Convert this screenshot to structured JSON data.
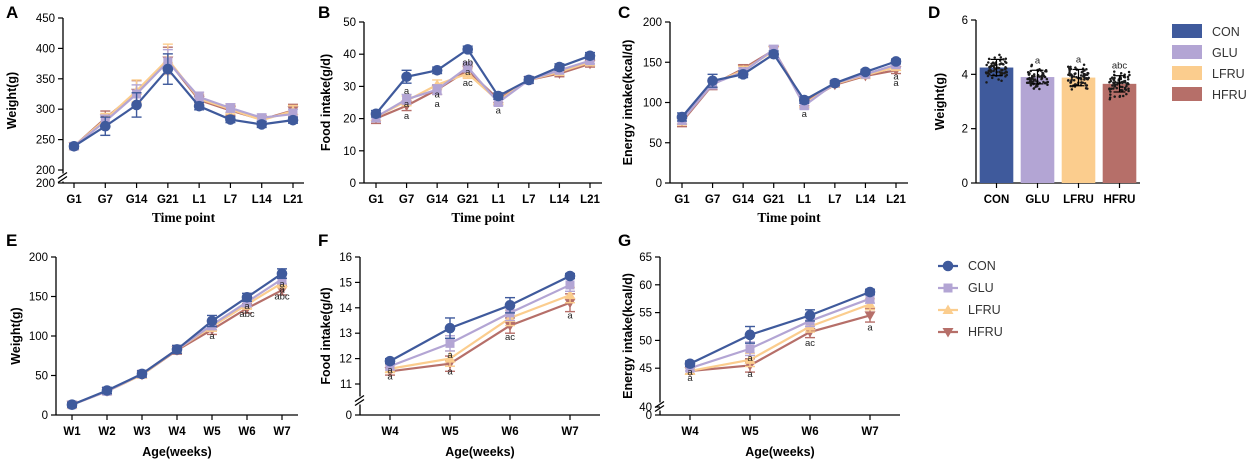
{
  "colors": {
    "CON": "#3f5a9c",
    "GLU": "#b3a5d4",
    "LFRU": "#fbcd8e",
    "HFRU": "#b66f69"
  },
  "legend_top": {
    "entries": [
      "CON",
      "GLU",
      "LFRU",
      "HFRU"
    ]
  },
  "legend_bottom": {
    "entries": [
      "CON",
      "GLU",
      "LFRU",
      "HFRU"
    ]
  },
  "chart_data": [
    {
      "id": "A",
      "label": "A",
      "type": "line",
      "ylabel": "Weight(g)",
      "xlabel": "Time point",
      "categories": [
        "G1",
        "G7",
        "G14",
        "G21",
        "L1",
        "L7",
        "L14",
        "L21"
      ],
      "ylim": [
        200,
        450
      ],
      "break_at": 225,
      "yticks": [
        {
          "v": 200,
          "t": "200"
        },
        {
          "v": 250,
          "t": "250"
        },
        {
          "v": 300,
          "t": "300"
        },
        {
          "v": 350,
          "t": "350"
        },
        {
          "v": 400,
          "t": "400"
        },
        {
          "v": 450,
          "t": "450"
        }
      ],
      "extra_ticks": [
        {
          "v": 200,
          "t": "200"
        }
      ],
      "series": [
        {
          "name": "HFRU",
          "values": [
            239,
            285,
            327,
            380,
            315,
            298,
            283,
            298
          ],
          "err": [
            4,
            12,
            20,
            22,
            8,
            8,
            6,
            10
          ]
        },
        {
          "name": "LFRU",
          "values": [
            239,
            283,
            330,
            382,
            317,
            300,
            282,
            297
          ],
          "err": [
            4,
            10,
            18,
            25,
            8,
            8,
            6,
            9
          ]
        },
        {
          "name": "GLU",
          "values": [
            239,
            280,
            325,
            378,
            320,
            302,
            286,
            292
          ],
          "err": [
            4,
            10,
            15,
            20,
            8,
            7,
            6,
            8
          ]
        },
        {
          "name": "CON",
          "values": [
            239,
            272,
            307,
            366,
            305,
            283,
            275,
            282
          ],
          "err": [
            4,
            15,
            20,
            25,
            6,
            5,
            5,
            5
          ]
        }
      ],
      "annotations": []
    },
    {
      "id": "B",
      "label": "B",
      "type": "line",
      "ylabel": "Food intake(g/d)",
      "xlabel": "Time point",
      "categories": [
        "G1",
        "G7",
        "G14",
        "G21",
        "L1",
        "L7",
        "L14",
        "L21"
      ],
      "ylim": [
        0,
        50
      ],
      "yticks": [
        {
          "v": 0,
          "t": "0"
        },
        {
          "v": 10,
          "t": "10"
        },
        {
          "v": 20,
          "t": "20"
        },
        {
          "v": 30,
          "t": "30"
        },
        {
          "v": 40,
          "t": "40"
        },
        {
          "v": 50,
          "t": "50"
        }
      ],
      "extra_ticks": [],
      "series": [
        {
          "name": "HFRU",
          "values": [
            20,
            24,
            29,
            35,
            26,
            32,
            34,
            37
          ],
          "err": [
            1.5,
            1.5,
            1.5,
            1.5,
            1,
            1,
            1,
            1
          ]
        },
        {
          "name": "LFRU",
          "values": [
            20.5,
            25.5,
            30.5,
            34,
            25.5,
            32,
            34.5,
            37.5
          ],
          "err": [
            1.5,
            1.5,
            1.5,
            1.5,
            1,
            1,
            1,
            1
          ]
        },
        {
          "name": "GLU",
          "values": [
            20.5,
            26,
            29,
            36,
            25,
            32,
            35,
            38
          ],
          "err": [
            1.5,
            1.5,
            1.5,
            1.5,
            1,
            1,
            1,
            1
          ]
        },
        {
          "name": "CON",
          "values": [
            21.5,
            33,
            35,
            41.5,
            27,
            32,
            36,
            39.5
          ],
          "err": [
            1,
            2,
            1,
            1,
            1,
            1,
            1,
            1
          ]
        }
      ],
      "annotations": [
        {
          "x": "G7",
          "y": 28.5,
          "text": "a"
        },
        {
          "x": "G7",
          "y": 24.5,
          "text": "a"
        },
        {
          "x": "G7",
          "y": 20.8,
          "text": "a"
        },
        {
          "x": "G14",
          "y": 27.5,
          "text": "a"
        },
        {
          "x": "G14",
          "y": 24.5,
          "text": "a"
        },
        {
          "x": "G21",
          "y": 37.5,
          "text": "ab"
        },
        {
          "x": "G21",
          "y": 34.5,
          "text": "a"
        },
        {
          "x": "G21",
          "y": 31,
          "text": "ac"
        },
        {
          "x": "L1",
          "y": 22.5,
          "text": "a"
        }
      ]
    },
    {
      "id": "C",
      "label": "C",
      "type": "line",
      "ylabel": "Energy intake(kcal/d)",
      "xlabel": "Time point",
      "categories": [
        "G1",
        "G7",
        "G14",
        "G21",
        "L1",
        "L7",
        "L14",
        "L21"
      ],
      "ylim": [
        0,
        200
      ],
      "yticks": [
        {
          "v": 0,
          "t": "0"
        },
        {
          "v": 50,
          "t": "50"
        },
        {
          "v": 100,
          "t": "100"
        },
        {
          "v": 150,
          "t": "150"
        },
        {
          "v": 200,
          "t": "200"
        }
      ],
      "extra_ticks": [],
      "series": [
        {
          "name": "HFRU",
          "values": [
            76,
            122,
            142,
            165,
            100,
            122,
            133,
            140
          ],
          "err": [
            6,
            6,
            5,
            5,
            4,
            3,
            3,
            4
          ]
        },
        {
          "name": "LFRU",
          "values": [
            78,
            123,
            140,
            164,
            98,
            123,
            134,
            144
          ],
          "err": [
            6,
            6,
            5,
            5,
            4,
            3,
            3,
            4
          ]
        },
        {
          "name": "GLU",
          "values": [
            78,
            123,
            138,
            166,
            96,
            124,
            135,
            147
          ],
          "err": [
            5,
            6,
            5,
            5,
            4,
            3,
            3,
            4
          ]
        },
        {
          "name": "CON",
          "values": [
            82,
            127,
            135,
            160,
            103,
            124,
            138,
            151
          ],
          "err": [
            5,
            8,
            4,
            4,
            4,
            3,
            3,
            3
          ]
        }
      ],
      "annotations": [
        {
          "x": "L1",
          "y": 86,
          "text": "a"
        },
        {
          "x": "L21",
          "y": 132,
          "text": "a"
        },
        {
          "x": "L21",
          "y": 124,
          "text": "a"
        }
      ]
    },
    {
      "id": "D",
      "label": "D",
      "type": "bar",
      "ylabel": "Weight(g)",
      "xlabel": "",
      "categories": [
        "CON",
        "GLU",
        "LFRU",
        "HFRU"
      ],
      "values": [
        4.25,
        3.9,
        3.88,
        3.65
      ],
      "err": [
        0.3,
        0.25,
        0.3,
        0.3
      ],
      "ylim": [
        0,
        6
      ],
      "yticks": [
        {
          "v": 0,
          "t": "0"
        },
        {
          "v": 2,
          "t": "2"
        },
        {
          "v": 4,
          "t": "4"
        },
        {
          "v": 6,
          "t": "6"
        }
      ],
      "bar_labels": [
        "",
        "a",
        "a",
        "abc"
      ]
    },
    {
      "id": "E",
      "label": "E",
      "type": "line",
      "ylabel": "Weight(g)",
      "xlabel": "Age(weeks)",
      "categories": [
        "W1",
        "W2",
        "W3",
        "W4",
        "W5",
        "W6",
        "W7"
      ],
      "ylim": [
        0,
        200
      ],
      "yticks": [
        {
          "v": 0,
          "t": "0"
        },
        {
          "v": 50,
          "t": "50"
        },
        {
          "v": 100,
          "t": "100"
        },
        {
          "v": 150,
          "t": "150"
        },
        {
          "v": 200,
          "t": "200"
        }
      ],
      "extra_ticks": [],
      "series": [
        {
          "name": "HFRU",
          "values": [
            13,
            30,
            51,
            82,
            108,
            135,
            158
          ],
          "err": [
            3,
            4,
            4,
            5,
            6,
            6,
            6
          ]
        },
        {
          "name": "LFRU",
          "values": [
            13,
            30,
            51,
            83,
            112,
            140,
            167
          ],
          "err": [
            3,
            4,
            4,
            5,
            6,
            6,
            6
          ]
        },
        {
          "name": "GLU",
          "values": [
            13,
            30,
            52,
            83,
            114,
            143,
            172
          ],
          "err": [
            3,
            4,
            4,
            5,
            6,
            6,
            6
          ]
        },
        {
          "name": "CON",
          "values": [
            13,
            31,
            52,
            83,
            119,
            149,
            179
          ],
          "err": [
            3,
            4,
            4,
            5,
            7,
            5,
            6
          ]
        }
      ],
      "annotations": [
        {
          "x": "W5",
          "y": 100,
          "text": "a"
        },
        {
          "x": "W6",
          "y": 138,
          "text": "a"
        },
        {
          "x": "W6",
          "y": 128,
          "text": "abc"
        },
        {
          "x": "W7",
          "y": 166,
          "text": "a"
        },
        {
          "x": "W7",
          "y": 159,
          "text": "a"
        },
        {
          "x": "W7",
          "y": 150,
          "text": "abc"
        }
      ]
    },
    {
      "id": "F",
      "label": "F",
      "type": "line",
      "ylabel": "Food intake(g/d)",
      "xlabel": "Age(weeks)",
      "categories": [
        "W4",
        "W5",
        "W6",
        "W7"
      ],
      "ylim": [
        11,
        16
      ],
      "break_at": 10.7,
      "yticks": [
        {
          "v": 11,
          "t": "11"
        },
        {
          "v": 12,
          "t": "12"
        },
        {
          "v": 13,
          "t": "13"
        },
        {
          "v": 14,
          "t": "14"
        },
        {
          "v": 15,
          "t": "15"
        },
        {
          "v": 16,
          "t": "16"
        }
      ],
      "extra_ticks": [
        {
          "v": 0,
          "t": "0"
        }
      ],
      "series": [
        {
          "name": "HFRU",
          "values": [
            11.5,
            11.8,
            13.3,
            14.2
          ],
          "err": [
            0.15,
            0.3,
            0.3,
            0.35
          ]
        },
        {
          "name": "LFRU",
          "values": [
            11.6,
            12.0,
            13.6,
            14.5
          ],
          "err": [
            0.15,
            0.3,
            0.3,
            0.3
          ]
        },
        {
          "name": "GLU",
          "values": [
            11.7,
            12.6,
            13.8,
            14.9
          ],
          "err": [
            0.15,
            0.3,
            0.3,
            0.25
          ]
        },
        {
          "name": "CON",
          "values": [
            11.9,
            13.2,
            14.1,
            15.25
          ],
          "err": [
            0.1,
            0.4,
            0.3,
            0.1
          ]
        }
      ],
      "annotations": [
        {
          "x": "W4",
          "y": 11.55,
          "text": "a"
        },
        {
          "x": "W4",
          "y": 11.3,
          "text": "a"
        },
        {
          "x": "W5",
          "y": 12.15,
          "text": "a"
        },
        {
          "x": "W5",
          "y": 11.5,
          "text": "a"
        },
        {
          "x": "W6",
          "y": 12.85,
          "text": "ac"
        },
        {
          "x": "W7",
          "y": 13.7,
          "text": "a"
        }
      ]
    },
    {
      "id": "G",
      "label": "G",
      "type": "line",
      "ylabel": "Energy intake(kcal/d)",
      "xlabel": "Age(weeks)",
      "categories": [
        "W4",
        "W5",
        "W6",
        "W7"
      ],
      "ylim": [
        40,
        65
      ],
      "break_at": 39,
      "yticks": [
        {
          "v": 45,
          "t": "45"
        },
        {
          "v": 50,
          "t": "50"
        },
        {
          "v": 55,
          "t": "55"
        },
        {
          "v": 60,
          "t": "60"
        },
        {
          "v": 65,
          "t": "65"
        }
      ],
      "extra_ticks": [
        {
          "v": 40,
          "t": "40"
        },
        {
          "v": 0,
          "t": "0"
        }
      ],
      "series": [
        {
          "name": "HFRU",
          "values": [
            44.5,
            45.5,
            51.5,
            54.5
          ],
          "err": [
            0.5,
            1.2,
            1,
            1.2
          ]
        },
        {
          "name": "LFRU",
          "values": [
            44.5,
            46.5,
            52.5,
            56.5
          ],
          "err": [
            0.5,
            1.2,
            1,
            1
          ]
        },
        {
          "name": "GLU",
          "values": [
            45,
            48.5,
            53.5,
            57.5
          ],
          "err": [
            0.5,
            1.2,
            1,
            0.8
          ]
        },
        {
          "name": "CON",
          "values": [
            45.8,
            51,
            54.5,
            58.7
          ],
          "err": [
            0.5,
            1.5,
            1,
            0.5
          ]
        }
      ],
      "annotations": [
        {
          "x": "W4",
          "y": 44.3,
          "text": "a"
        },
        {
          "x": "W4",
          "y": 43.2,
          "text": "a"
        },
        {
          "x": "W5",
          "y": 46.8,
          "text": "a"
        },
        {
          "x": "W5",
          "y": 44.0,
          "text": "a"
        },
        {
          "x": "W6",
          "y": 49.5,
          "text": "ac"
        },
        {
          "x": "W7",
          "y": 52.3,
          "text": "a"
        }
      ]
    }
  ]
}
